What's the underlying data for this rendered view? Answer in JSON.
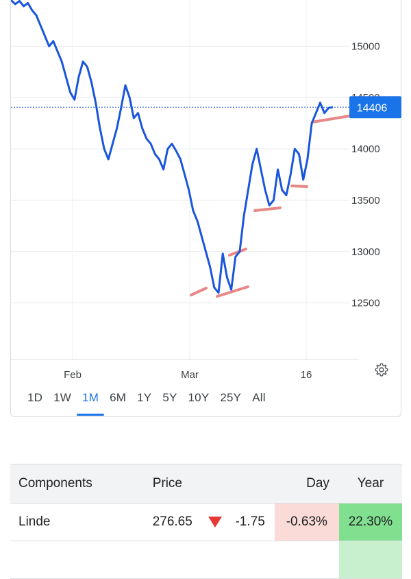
{
  "chart_data": {
    "type": "line",
    "current_value": 14406,
    "current_label": "14406",
    "y_ticks": [
      12500,
      13000,
      13500,
      14000,
      14500,
      15000
    ],
    "y_tick_labels": [
      "12500",
      "13000",
      "13500",
      "14000",
      "14500",
      "15000"
    ],
    "x_labels": [
      "Feb",
      "Mar",
      "16"
    ],
    "ylim": [
      11950,
      15450
    ],
    "series": [
      {
        "values": [
          15450,
          15410,
          15440,
          15390,
          15420,
          15350,
          15300,
          15200,
          15100,
          15000,
          15050,
          14950,
          14850,
          14700,
          14550,
          14480,
          14700,
          14850,
          14800,
          14650,
          14450,
          14200,
          14000,
          13900,
          14050,
          14200,
          14400,
          14620,
          14500,
          14300,
          14350,
          14200,
          14100,
          14050,
          13950,
          13900,
          13800,
          14000,
          14050,
          13980,
          13900,
          13750,
          13600,
          13400,
          13300,
          13150,
          13000,
          12850,
          12650,
          12600,
          12980,
          12750,
          12630,
          12950,
          13000,
          13350,
          13600,
          13850,
          14000,
          13800,
          13600,
          13450,
          13500,
          13800,
          13600,
          13550,
          13750,
          14000,
          13950,
          13700,
          13900,
          14250,
          14350,
          14450,
          14350,
          14400,
          14406
        ]
      }
    ],
    "grid": true
  },
  "controls": {
    "settings_icon": "gear-icon",
    "ranges": [
      "1D",
      "1W",
      "1M",
      "6M",
      "1Y",
      "5Y",
      "10Y",
      "25Y",
      "All"
    ],
    "active_range": "1M"
  },
  "components_table": {
    "headers": {
      "name": "Components",
      "price": "Price",
      "day": "Day",
      "year": "Year"
    },
    "rows": [
      {
        "name": "Linde",
        "price": "276.65",
        "direction": "down",
        "change": "-1.75",
        "day_pct": "-0.63%",
        "year_pct": "22.30%"
      }
    ],
    "colors": {
      "day_negative_bg": "#fadbd8",
      "year_positive_bg": "#81e08f",
      "down_arrow": "#e53935"
    }
  }
}
